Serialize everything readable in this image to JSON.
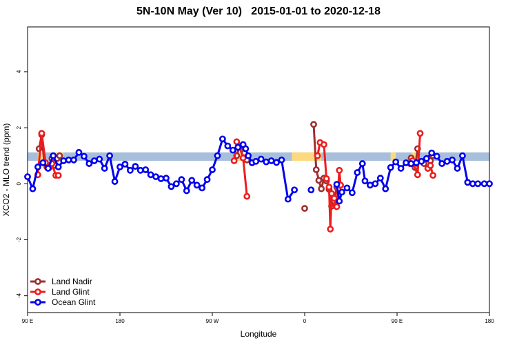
{
  "chart_data": {
    "type": "line",
    "title": "5N-10N May (Ver 10)   2015-01-01 to 2020-12-18",
    "xlabel": "Longitude",
    "ylabel": "XCO2 - MLO trend (ppm)",
    "xlim": [
      -90,
      270
    ],
    "ylim": [
      -4.6,
      5.6
    ],
    "x_ticks": [
      {
        "value": -90,
        "label": "90 E"
      },
      {
        "value": -18,
        "label": "180"
      },
      {
        "value": 54,
        "label": "90 W"
      },
      {
        "value": 126,
        "label": "0"
      },
      {
        "value": 198,
        "label": "90 E"
      },
      {
        "value": 270,
        "label": "180"
      }
    ],
    "y_ticks": [
      -4,
      -2,
      0,
      2,
      4
    ],
    "grid": false,
    "legend_position": "bottom-left",
    "background_band": {
      "y_range": [
        0.82,
        1.12
      ],
      "base_color": "#a8bfdc",
      "land_color": "#fcd97e",
      "land_segments": [
        [
          -82,
          -78
        ],
        [
          -68,
          -62
        ],
        [
          73,
          80
        ],
        [
          116,
          139
        ],
        [
          193,
          197
        ],
        [
          209,
          215
        ]
      ]
    },
    "series": [
      {
        "name": "Land Nadir",
        "color": "#9e2f2f",
        "segments": [
          {
            "x": [
              -81,
              -79,
              -77,
              -75
            ],
            "y": [
              1.25,
              1.75,
              0.75,
              0.6
            ]
          },
          {
            "x": [
              -71,
              -69,
              -67,
              -65
            ],
            "y": [
              0.9,
              0.65,
              0.9,
              1.0
            ]
          },
          {
            "x": [
              73,
              75,
              77,
              79,
              81
            ],
            "y": [
              1.0,
              1.3,
              1.35,
              1.1,
              0.85
            ]
          },
          {
            "x": [
              126
            ],
            "y": [
              -0.88
            ]
          },
          {
            "x": [
              133,
              135,
              137,
              139,
              141,
              143,
              145,
              147,
              149,
              151,
              152
            ],
            "y": [
              2.12,
              0.5,
              0.12,
              -0.18,
              0.2,
              0.1,
              -0.2,
              -0.8,
              -0.62,
              -0.12,
              -0.02
            ]
          },
          {
            "x": [
              209,
              211,
              212,
              214
            ],
            "y": [
              0.92,
              0.7,
              0.58,
              1.25
            ]
          },
          {
            "x": [
              219,
              222,
              224,
              226
            ],
            "y": [
              0.72,
              0.55,
              0.82,
              1.0
            ]
          }
        ]
      },
      {
        "name": "Land Glint",
        "color": "#ee1c1c",
        "segments": [
          {
            "x": [
              -82,
              -79,
              -76,
              -73,
              -71,
              -68,
              -66
            ],
            "y": [
              0.32,
              1.8,
              0.75,
              0.58,
              0.72,
              0.3,
              0.3
            ]
          },
          {
            "x": [
              71,
              73,
              75,
              78,
              81
            ],
            "y": [
              0.82,
              1.5,
              1.35,
              0.92,
              -0.45
            ]
          },
          {
            "x": [
              136,
              138,
              141,
              143,
              145,
              146,
              147,
              149,
              150,
              151,
              152,
              153,
              154
            ],
            "y": [
              1.0,
              1.47,
              1.4,
              0.18,
              -0.12,
              -1.62,
              -0.35,
              -0.52,
              -0.78,
              -0.82,
              -0.2,
              0.48,
              -0.05
            ]
          },
          {
            "x": [
              208,
              210,
              214,
              216
            ],
            "y": [
              0.72,
              0.82,
              0.32,
              1.8
            ]
          },
          {
            "x": [
              222,
              224,
              226
            ],
            "y": [
              0.55,
              0.65,
              0.3
            ]
          }
        ]
      },
      {
        "name": "Ocean Glint",
        "color": "#0000ee",
        "segments": [
          {
            "x": [
              -90,
              -86,
              -82,
              -78,
              -74,
              -70,
              -66,
              -62,
              -58,
              -54,
              -50,
              -46,
              -42,
              -38,
              -34,
              -30,
              -26,
              -22,
              -18,
              -14,
              -10,
              -6,
              -2,
              2,
              6,
              10,
              14,
              18,
              22,
              26,
              30,
              34,
              38,
              42,
              46,
              50,
              54,
              58,
              62,
              66,
              70
            ],
            "y": [
              0.25,
              -0.18,
              0.6,
              0.75,
              0.55,
              1.0,
              0.6,
              0.82,
              0.85,
              0.85,
              1.12,
              0.98,
              0.72,
              0.82,
              0.88,
              0.55,
              1.0,
              0.08,
              0.6,
              0.7,
              0.48,
              0.62,
              0.48,
              0.5,
              0.32,
              0.25,
              0.18,
              0.2,
              -0.1,
              0.0,
              0.15,
              -0.25,
              0.12,
              -0.05,
              -0.15,
              0.15,
              0.5,
              1.0,
              1.6,
              1.35,
              1.2
            ]
          },
          {
            "x": [
              74,
              78,
              80,
              82,
              85,
              88,
              92,
              96,
              100,
              104,
              108,
              113,
              118
            ],
            "y": [
              1.3,
              1.4,
              1.25,
              1.0,
              0.75,
              0.8,
              0.88,
              0.78,
              0.82,
              0.76,
              0.85,
              -0.55,
              -0.22
            ]
          },
          {
            "x": [
              131
            ],
            "y": [
              -0.22
            ]
          },
          {
            "x": [
              151,
              153,
              155,
              159,
              163,
              167,
              171,
              173,
              177,
              181,
              185,
              189,
              193,
              197,
              201,
              205,
              209,
              213,
              217,
              221,
              225,
              229,
              233,
              237,
              241,
              245,
              249,
              253,
              257,
              261,
              266,
              270
            ],
            "y": [
              -0.02,
              -0.62,
              -0.3,
              -0.15,
              -0.32,
              0.4,
              0.72,
              0.1,
              -0.05,
              0.0,
              0.2,
              -0.18,
              0.58,
              0.78,
              0.55,
              0.75,
              0.72,
              0.75,
              0.8,
              0.9,
              1.1,
              0.98,
              0.72,
              0.8,
              0.85,
              0.55,
              1.0,
              0.05,
              0.0,
              0.0,
              0.0,
              0.0
            ]
          }
        ]
      }
    ]
  }
}
